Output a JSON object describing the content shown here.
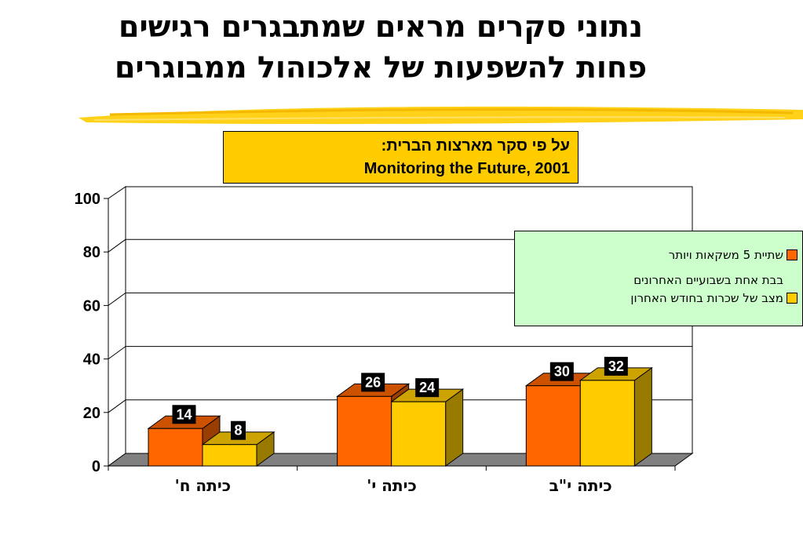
{
  "slide": {
    "title_line1": "נתוני סקרים מראים שמתבגרים רגישים",
    "title_line2": "פחות להשפעות של אלכוהול ממבוגרים"
  },
  "source": {
    "line1": "על פי סקר מארצות הברית:",
    "line2": "Monitoring the Future, 2001"
  },
  "colors": {
    "orange": "#ff6600",
    "yellow": "#ffcc00",
    "legend_bg": "#ccffcc",
    "floor": "#808080",
    "brush": "#ffcc00"
  },
  "chart_data": {
    "type": "bar",
    "categories": [
      "כיתה ח'",
      "כיתה י'",
      "כיתה י\"ב"
    ],
    "series": [
      {
        "name": "שתיית 5 משקאות ויותר בבת אחת בשבועיים האחרונים",
        "values": [
          14,
          26,
          30
        ],
        "color": "#ff6600"
      },
      {
        "name": "מצב של שכרות בחודש האחרון",
        "values": [
          8,
          24,
          32
        ],
        "color": "#ffcc00"
      }
    ],
    "ylim": [
      0,
      100
    ],
    "yticks": [
      "0",
      "20",
      "40",
      "60",
      "80",
      "100"
    ],
    "grid": true,
    "legend_position": "right",
    "legend_lines": [
      "שתיית 5 משקאות ויותר",
      "בבת אחת בשבועיים האחרונים",
      "מצב של שכרות בחודש האחרון"
    ]
  }
}
